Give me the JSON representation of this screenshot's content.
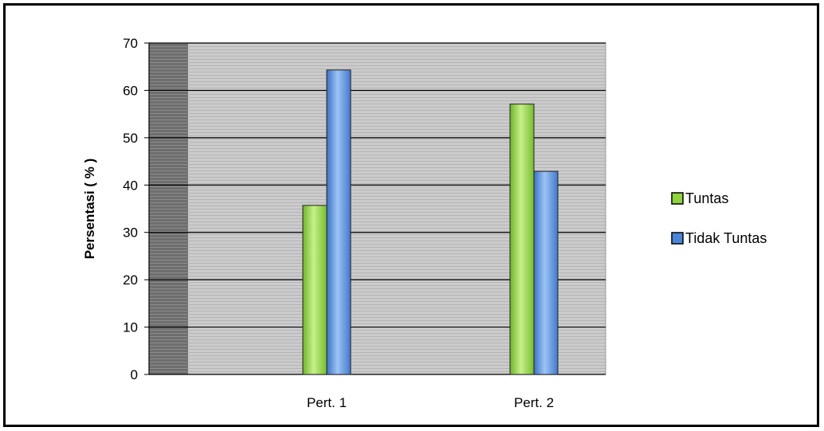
{
  "chart_data": {
    "type": "bar",
    "title": "",
    "xlabel": "",
    "ylabel": "Persentasi ( % )",
    "categories": [
      "Pert. 1",
      "Pert.  2"
    ],
    "series": [
      {
        "name": "Tuntas",
        "values": [
          35.7,
          57.1
        ]
      },
      {
        "name": "Tidak Tuntas",
        "values": [
          64.3,
          42.9
        ]
      }
    ],
    "ylim": [
      0,
      70
    ],
    "yticks": [
      "0",
      "10",
      "20",
      "30",
      "40",
      "50",
      "60",
      "70"
    ],
    "grid": true,
    "legend_position": "right",
    "colors": {
      "Tuntas": "#8fd33e",
      "Tidak Tuntas": "#4a86d8",
      "plot_background": "#c8c8c8",
      "wall_background": "#7a7a7a"
    }
  }
}
